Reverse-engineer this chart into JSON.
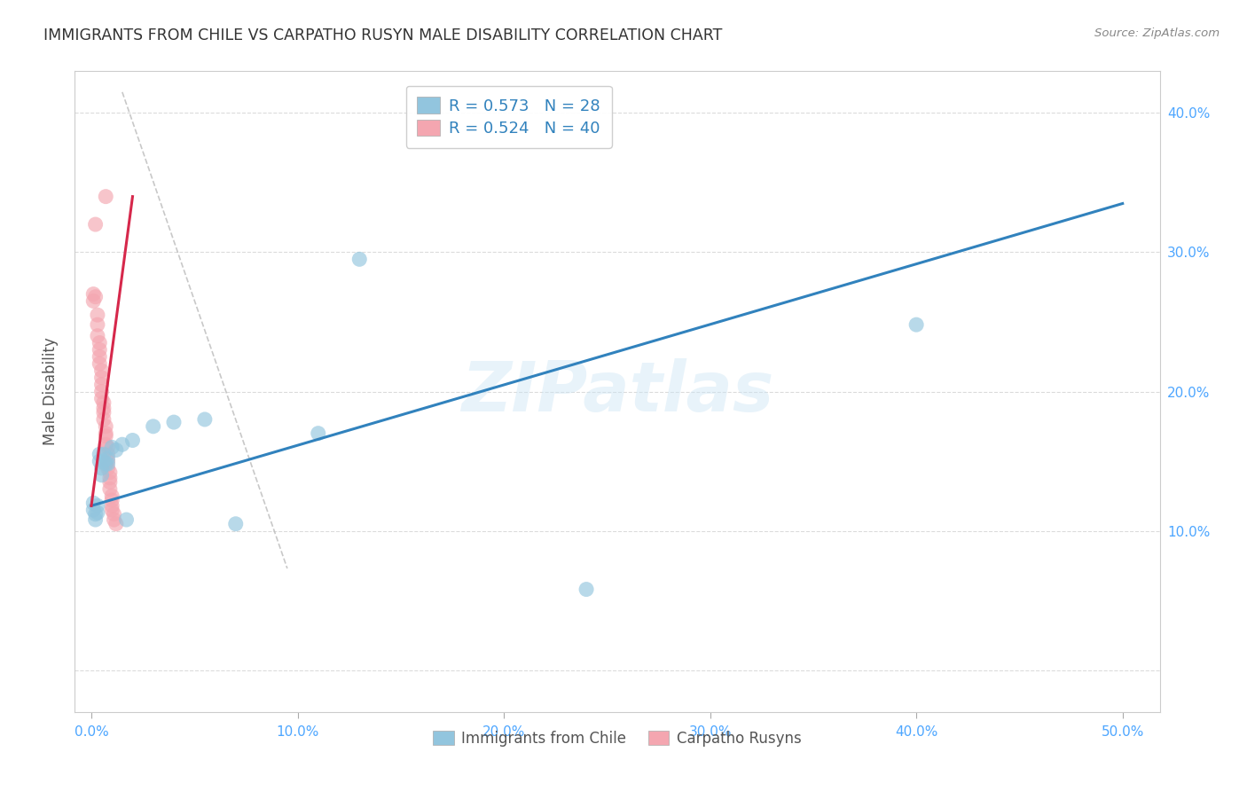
{
  "title": "IMMIGRANTS FROM CHILE VS CARPATHO RUSYN MALE DISABILITY CORRELATION CHART",
  "source": "Source: ZipAtlas.com",
  "ylabel": "Male Disability",
  "x_ticks": [
    0.0,
    0.1,
    0.2,
    0.3,
    0.4,
    0.5
  ],
  "x_tick_labels": [
    "0.0%",
    "10.0%",
    "20.0%",
    "30.0%",
    "40.0%",
    "50.0%"
  ],
  "y_ticks": [
    0.0,
    0.1,
    0.2,
    0.3,
    0.4
  ],
  "y_tick_labels": [
    "",
    "10.0%",
    "20.0%",
    "30.0%",
    "40.0%"
  ],
  "xlim": [
    -0.008,
    0.518
  ],
  "ylim": [
    -0.03,
    0.43
  ],
  "legend1_label": "Immigrants from Chile",
  "legend2_label": "Carpatho Rusyns",
  "R1": 0.573,
  "N1": 28,
  "R2": 0.524,
  "N2": 40,
  "blue_color": "#92c5de",
  "pink_color": "#f4a6b0",
  "blue_line_color": "#3182bd",
  "pink_line_color": "#d6284b",
  "watermark": "ZIPatlas",
  "grid_color": "#cccccc",
  "title_color": "#333333",
  "axis_label_color": "#555555",
  "tick_color": "#4da6ff",
  "blue_scatter": [
    [
      0.001,
      0.12
    ],
    [
      0.001,
      0.115
    ],
    [
      0.002,
      0.112
    ],
    [
      0.002,
      0.108
    ],
    [
      0.003,
      0.118
    ],
    [
      0.003,
      0.113
    ],
    [
      0.004,
      0.155
    ],
    [
      0.004,
      0.15
    ],
    [
      0.005,
      0.145
    ],
    [
      0.005,
      0.14
    ],
    [
      0.006,
      0.155
    ],
    [
      0.006,
      0.15
    ],
    [
      0.007,
      0.148
    ],
    [
      0.008,
      0.152
    ],
    [
      0.008,
      0.148
    ],
    [
      0.01,
      0.16
    ],
    [
      0.012,
      0.158
    ],
    [
      0.015,
      0.162
    ],
    [
      0.017,
      0.108
    ],
    [
      0.02,
      0.165
    ],
    [
      0.03,
      0.175
    ],
    [
      0.04,
      0.178
    ],
    [
      0.055,
      0.18
    ],
    [
      0.07,
      0.105
    ],
    [
      0.11,
      0.17
    ],
    [
      0.13,
      0.295
    ],
    [
      0.4,
      0.248
    ],
    [
      0.24,
      0.058
    ]
  ],
  "pink_scatter": [
    [
      0.001,
      0.27
    ],
    [
      0.001,
      0.265
    ],
    [
      0.002,
      0.268
    ],
    [
      0.002,
      0.32
    ],
    [
      0.003,
      0.255
    ],
    [
      0.003,
      0.248
    ],
    [
      0.003,
      0.24
    ],
    [
      0.004,
      0.235
    ],
    [
      0.004,
      0.23
    ],
    [
      0.004,
      0.225
    ],
    [
      0.004,
      0.22
    ],
    [
      0.005,
      0.215
    ],
    [
      0.005,
      0.21
    ],
    [
      0.005,
      0.205
    ],
    [
      0.005,
      0.2
    ],
    [
      0.005,
      0.195
    ],
    [
      0.006,
      0.192
    ],
    [
      0.006,
      0.188
    ],
    [
      0.006,
      0.185
    ],
    [
      0.006,
      0.18
    ],
    [
      0.007,
      0.175
    ],
    [
      0.007,
      0.17
    ],
    [
      0.007,
      0.168
    ],
    [
      0.007,
      0.162
    ],
    [
      0.008,
      0.16
    ],
    [
      0.008,
      0.155
    ],
    [
      0.008,
      0.15
    ],
    [
      0.008,
      0.145
    ],
    [
      0.009,
      0.142
    ],
    [
      0.009,
      0.138
    ],
    [
      0.009,
      0.135
    ],
    [
      0.009,
      0.13
    ],
    [
      0.01,
      0.125
    ],
    [
      0.01,
      0.122
    ],
    [
      0.01,
      0.118
    ],
    [
      0.01,
      0.115
    ],
    [
      0.011,
      0.112
    ],
    [
      0.011,
      0.108
    ],
    [
      0.012,
      0.105
    ],
    [
      0.007,
      0.34
    ]
  ],
  "blue_line": [
    [
      0.0,
      0.118
    ],
    [
      0.5,
      0.335
    ]
  ],
  "pink_line": [
    [
      0.0,
      0.118
    ],
    [
      0.02,
      0.34
    ]
  ],
  "gray_dashed_line": [
    [
      0.015,
      0.415
    ],
    [
      0.095,
      0.073
    ]
  ]
}
